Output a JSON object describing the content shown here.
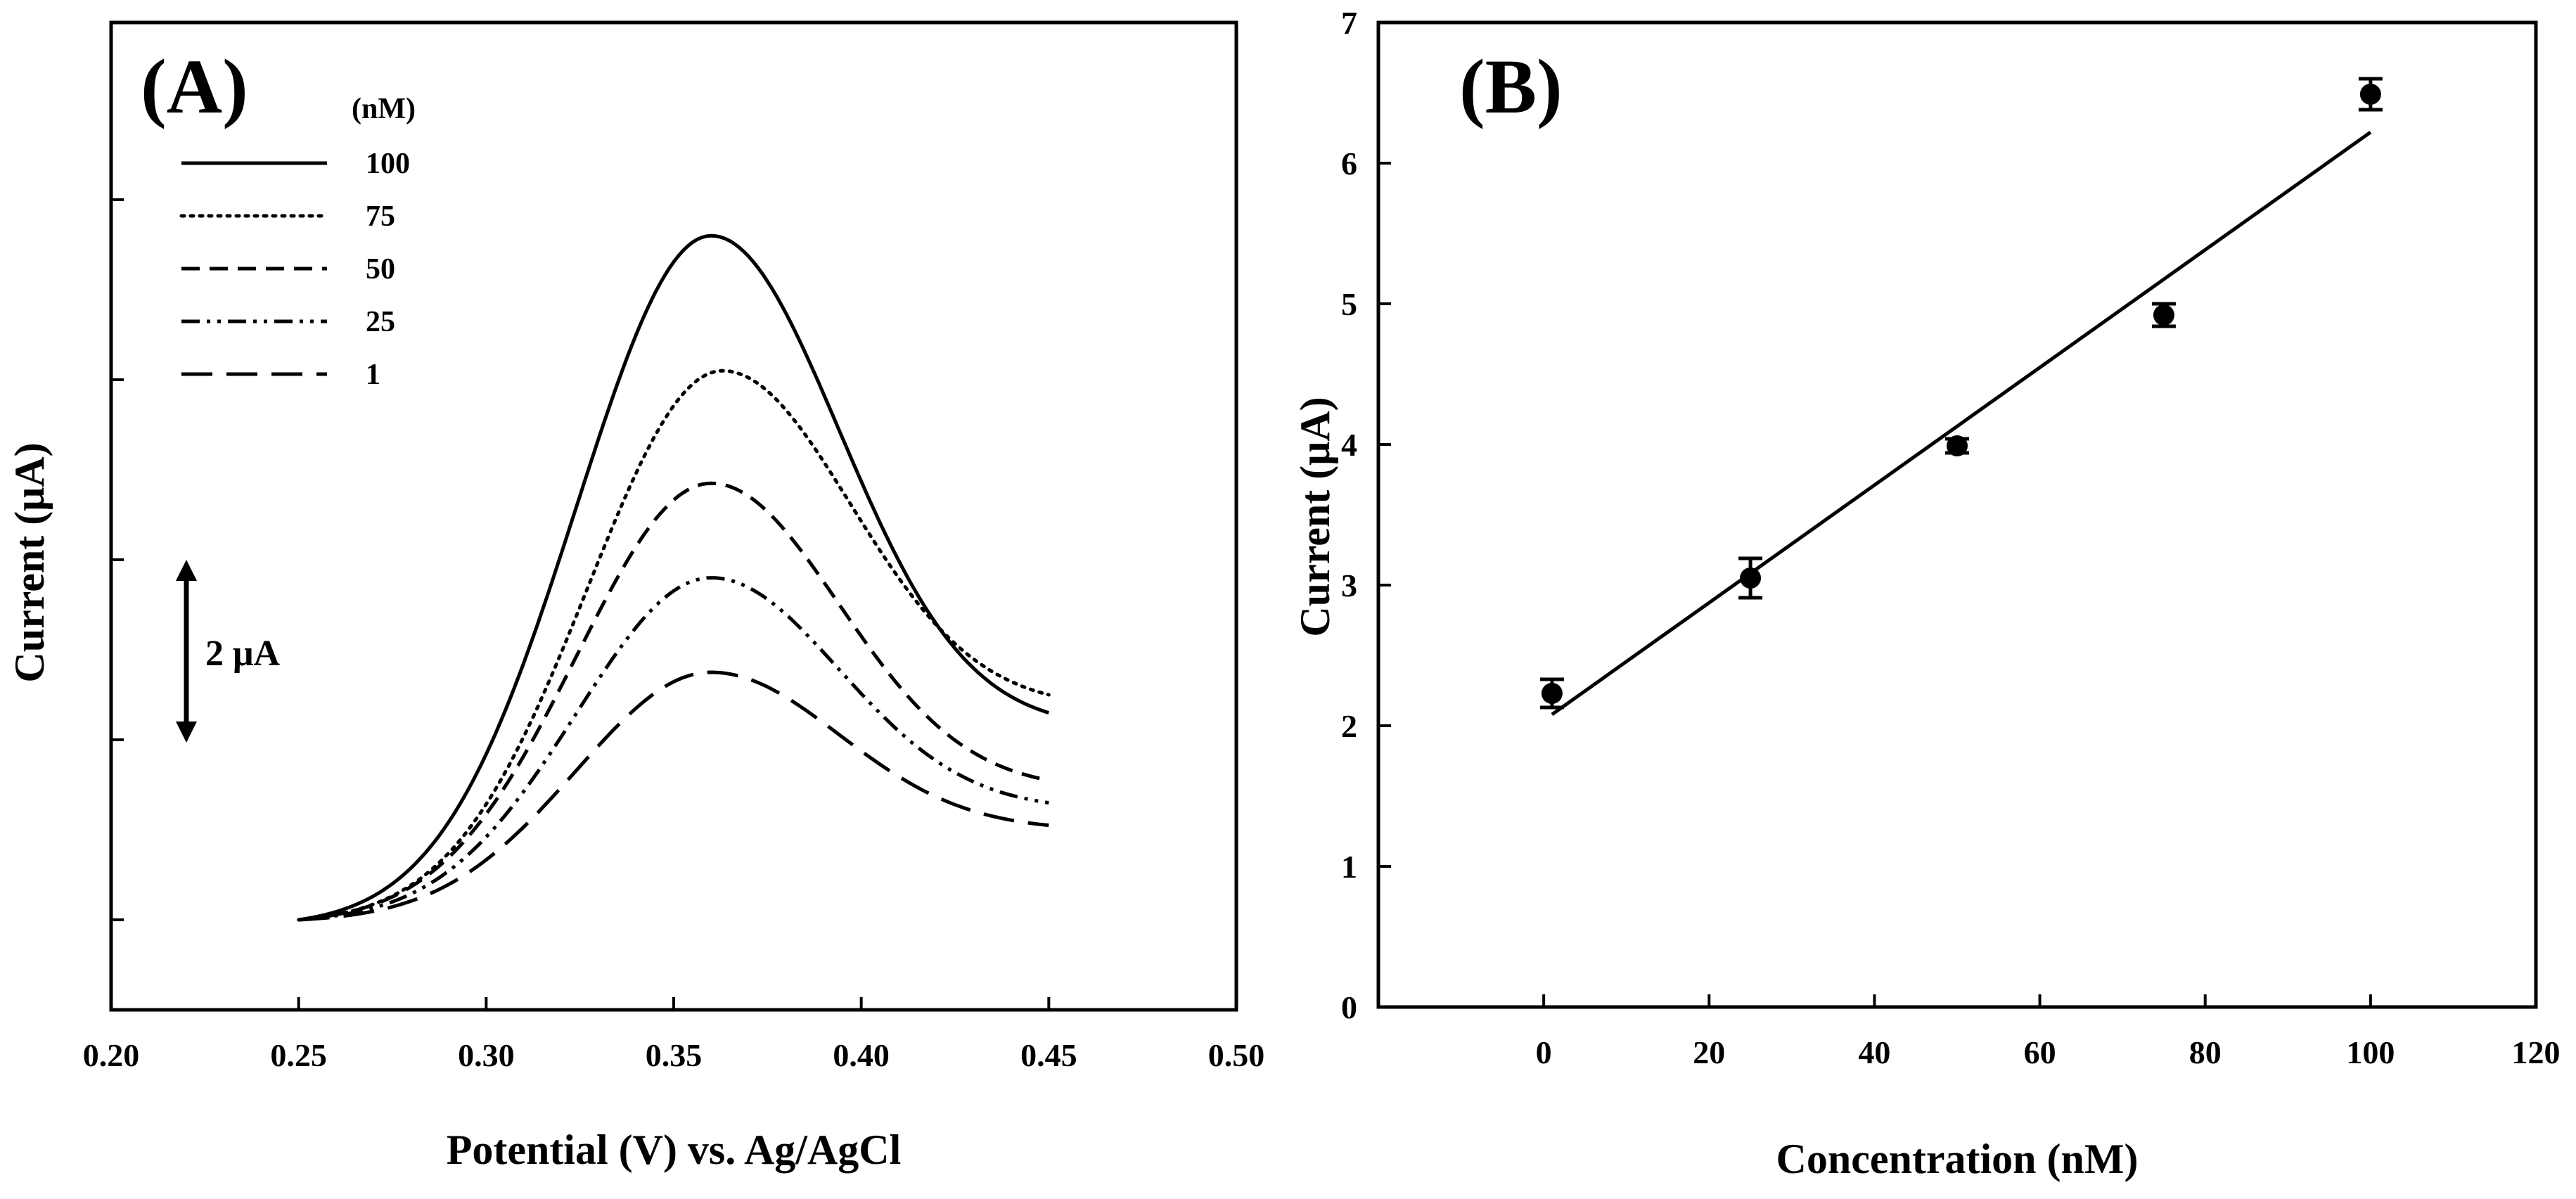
{
  "chart_data": [
    {
      "type": "line",
      "panel_label": "(A)",
      "xlabel": "Potential (V) vs. Ag/AgCl",
      "ylabel": "Current (μA)",
      "xlim": [
        0.2,
        0.5
      ],
      "xticks": [
        "0.20",
        "0.25",
        "0.30",
        "0.35",
        "0.40",
        "0.45",
        "0.50"
      ],
      "yticks_count": 5,
      "y_tick_spacing_uA": 2,
      "scale_bar_label": "2 μA",
      "legend_title": "(nM)",
      "legend_position": "top-left",
      "series": [
        {
          "name": "100",
          "dash": "solid",
          "peak_potential": 0.36,
          "peak_current": 7.6,
          "end_current": 2.3
        },
        {
          "name": "75",
          "dash": "dotted",
          "peak_potential": 0.363,
          "peak_current": 6.1,
          "end_current": 2.5
        },
        {
          "name": "50",
          "dash": "dashed",
          "peak_potential": 0.36,
          "peak_current": 4.85,
          "end_current": 1.55
        },
        {
          "name": "25",
          "dash": "dash-dot-dot",
          "peak_potential": 0.36,
          "peak_current": 3.8,
          "end_current": 1.3
        },
        {
          "name": "1",
          "dash": "long-dash",
          "peak_potential": 0.36,
          "peak_current": 2.75,
          "end_current": 1.05
        }
      ]
    },
    {
      "type": "scatter",
      "panel_label": "(B)",
      "xlabel": "Concentration (nM)",
      "ylabel": "Current (μA)",
      "xlim": [
        -20,
        120
      ],
      "ylim": [
        0,
        7
      ],
      "xticks": [
        "0",
        "20",
        "40",
        "60",
        "80",
        "100",
        "120"
      ],
      "yticks": [
        "0",
        "1",
        "2",
        "3",
        "4",
        "5",
        "6",
        "7"
      ],
      "x": [
        1,
        25,
        50,
        75,
        100
      ],
      "y": [
        2.23,
        3.05,
        3.99,
        4.92,
        6.49
      ],
      "error": [
        0.1,
        0.14,
        0.05,
        0.08,
        0.11
      ],
      "fit_line": {
        "x": [
          1,
          100
        ],
        "y": [
          2.08,
          6.22
        ]
      }
    }
  ]
}
